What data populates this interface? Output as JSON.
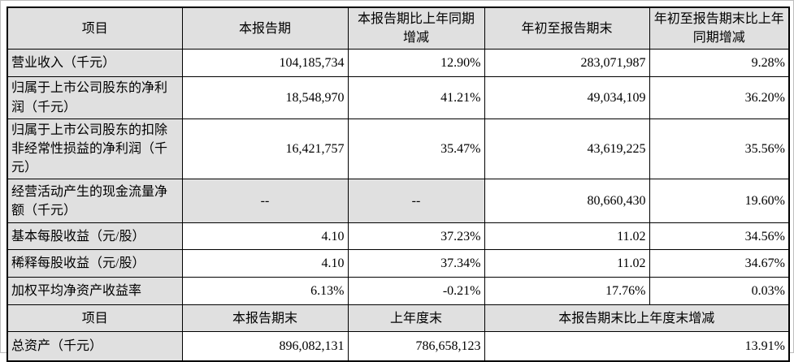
{
  "colors": {
    "header_bg": "#e0e0e0",
    "cell_bg": "#ffffff",
    "border": "#000000",
    "page_edge": "#bdbdbd",
    "text": "#000000"
  },
  "table": {
    "header_row_1": {
      "item": "项目",
      "current_period": "本报告期",
      "current_period_yoy": "本报告期比上年同期增减",
      "ytd": "年初至报告期末",
      "ytd_yoy": "年初至报告期末比上年同期增减"
    },
    "rows": [
      {
        "label": "营业收入（千元）",
        "current": "104,185,734",
        "current_yoy": "12.90%",
        "ytd": "283,071,987",
        "ytd_yoy": "9.28%"
      },
      {
        "label": "归属于上市公司股东的净利润（千元）",
        "current": "18,548,970",
        "current_yoy": "41.21%",
        "ytd": "49,034,109",
        "ytd_yoy": "36.20%"
      },
      {
        "label": "归属于上市公司股东的扣除非经常性损益的净利润（千元）",
        "current": "16,421,757",
        "current_yoy": "35.47%",
        "ytd": "43,619,225",
        "ytd_yoy": "35.56%"
      },
      {
        "label": "经营活动产生的现金流量净额（千元）",
        "current": "--",
        "current_yoy": "--",
        "ytd": "80,660,430",
        "ytd_yoy": "19.60%"
      },
      {
        "label": "基本每股收益（元/股）",
        "current": "4.10",
        "current_yoy": "37.23%",
        "ytd": "11.02",
        "ytd_yoy": "34.56%"
      },
      {
        "label": "稀释每股收益（元/股）",
        "current": "4.10",
        "current_yoy": "37.34%",
        "ytd": "11.02",
        "ytd_yoy": "34.67%"
      },
      {
        "label": "加权平均净资产收益率",
        "current": "6.13%",
        "current_yoy": "-0.21%",
        "ytd": "17.76%",
        "ytd_yoy": "0.03%"
      }
    ],
    "header_row_2": {
      "item": "项目",
      "period_end": "本报告期末",
      "prior_year_end": "上年度末",
      "change_vs_prior_year_end": "本报告期末比上年度末增减"
    },
    "rows_2": [
      {
        "label": "总资产（千元）",
        "period_end": "896,082,131",
        "prior_year_end": "786,658,123",
        "change": "13.91%"
      }
    ]
  }
}
